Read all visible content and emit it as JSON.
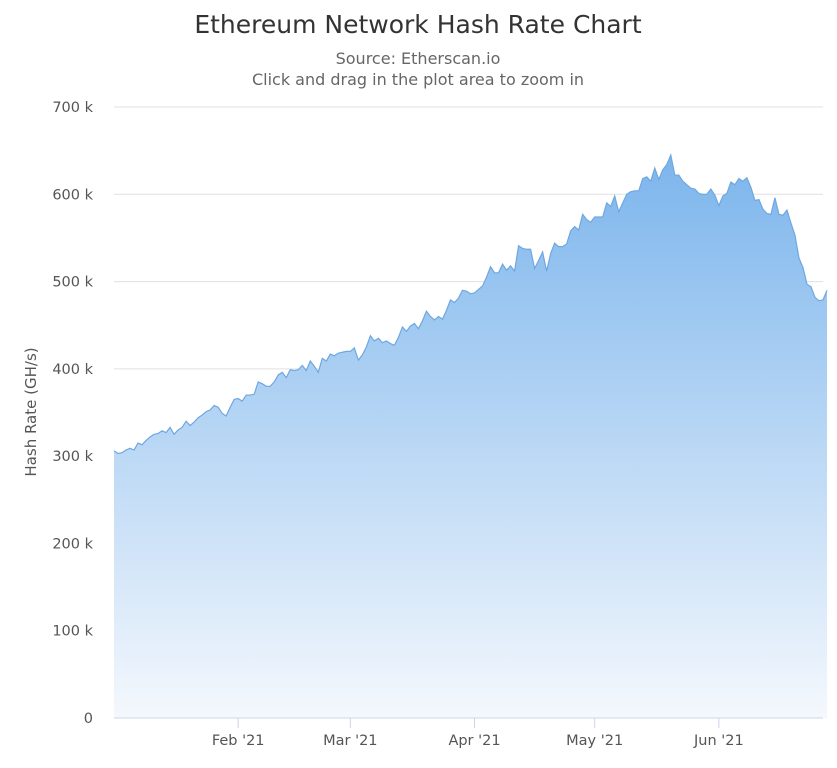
{
  "chart_data": {
    "type": "area",
    "title": "Ethereum Network Hash Rate Chart",
    "subtitles": [
      "Source: Etherscan.io",
      "Click and drag in the plot area to zoom in"
    ],
    "xlabel": "",
    "ylabel": "Hash Rate (GH/s)",
    "ylim": [
      0,
      700000
    ],
    "yticks": [
      {
        "value": 0,
        "label": "0"
      },
      {
        "value": 100000,
        "label": "100 k"
      },
      {
        "value": 200000,
        "label": "200 k"
      },
      {
        "value": 300000,
        "label": "300 k"
      },
      {
        "value": 400000,
        "label": "400 k"
      },
      {
        "value": 500000,
        "label": "500 k"
      },
      {
        "value": 600000,
        "label": "600 k"
      },
      {
        "value": 700000,
        "label": "700 k"
      }
    ],
    "xlim": [
      "2021-01-01",
      "2021-06-27"
    ],
    "xticks": [
      {
        "date": "2021-02-01",
        "label": "Feb '21"
      },
      {
        "date": "2021-03-01",
        "label": "Mar '21"
      },
      {
        "date": "2021-04-01",
        "label": "Apr '21"
      },
      {
        "date": "2021-05-01",
        "label": "May '21"
      },
      {
        "date": "2021-06-01",
        "label": "Jun '21"
      }
    ],
    "grid": true,
    "legend": "none",
    "colors": {
      "area_top": "#7cb5ec",
      "area_bottom": "#f4f8fd",
      "line": "#6fa7e0"
    },
    "x_start": "2021-01-01",
    "x_step_days": 1,
    "values": [
      306000,
      303000,
      304000,
      307000,
      309000,
      307000,
      315000,
      313000,
      318000,
      322000,
      325000,
      326000,
      329000,
      327000,
      333000,
      325000,
      330000,
      333000,
      340000,
      335000,
      339000,
      344000,
      347000,
      351000,
      353000,
      358000,
      356000,
      349000,
      346000,
      356000,
      365000,
      366000,
      363000,
      370000,
      370000,
      371000,
      385000,
      383000,
      380000,
      380000,
      385000,
      393000,
      396000,
      390000,
      399000,
      398000,
      399000,
      404000,
      398000,
      409000,
      403000,
      396000,
      412000,
      409000,
      417000,
      415000,
      418000,
      419000,
      420000,
      420000,
      424000,
      410000,
      416000,
      425000,
      438000,
      432000,
      435000,
      430000,
      432000,
      429000,
      427000,
      436000,
      448000,
      443000,
      449000,
      452000,
      446000,
      455000,
      466000,
      460000,
      456000,
      460000,
      457000,
      467000,
      479000,
      476000,
      481000,
      490000,
      489000,
      486000,
      487000,
      491000,
      495000,
      505000,
      517000,
      510000,
      510000,
      520000,
      513000,
      518000,
      512000,
      541000,
      538000,
      537000,
      537000,
      515000,
      524000,
      534000,
      512000,
      532000,
      544000,
      540000,
      540000,
      543000,
      558000,
      563000,
      559000,
      577000,
      571000,
      568000,
      574000,
      574000,
      574000,
      590000,
      586000,
      598000,
      580000,
      590000,
      600000,
      603000,
      604000,
      604000,
      618000,
      620000,
      615000,
      630000,
      617000,
      628000,
      634000,
      645000,
      622000,
      622000,
      615000,
      611000,
      607000,
      606000,
      601000,
      600000,
      600000,
      606000,
      599000,
      587000,
      598000,
      601000,
      614000,
      611000,
      618000,
      615000,
      619000,
      608000,
      593000,
      594000,
      583000,
      578000,
      577000,
      596000,
      577000,
      576000,
      582000,
      567000,
      553000,
      527000,
      516000,
      497000,
      494000,
      482000,
      478000,
      479000,
      490000
    ]
  }
}
